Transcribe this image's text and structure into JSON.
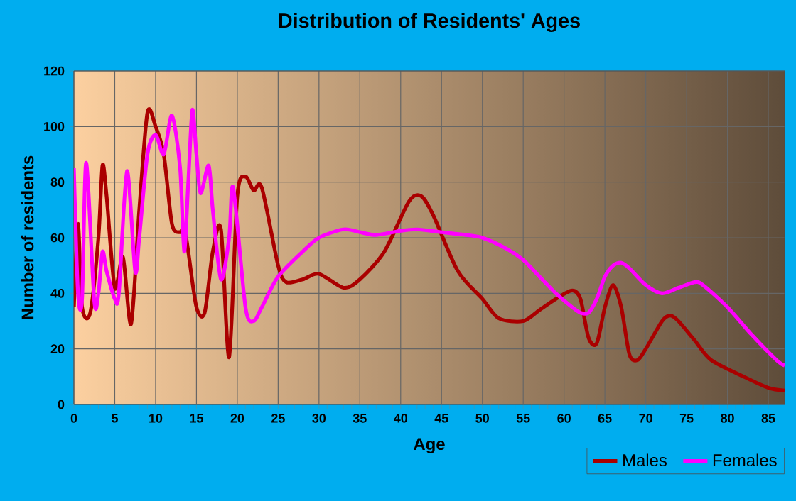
{
  "chart_data": {
    "type": "line",
    "title": "Distribution of Residents' Ages",
    "xlabel": "Age",
    "ylabel": "Number of residents",
    "xlim": [
      0,
      87
    ],
    "ylim": [
      0,
      120
    ],
    "xticks": [
      0,
      5,
      10,
      15,
      20,
      25,
      30,
      35,
      40,
      45,
      50,
      55,
      60,
      65,
      70,
      75,
      80,
      85
    ],
    "yticks": [
      0,
      20,
      40,
      60,
      80,
      100,
      120
    ],
    "grid": true,
    "legend": "bottom right",
    "marker": "none",
    "line_style": "solid",
    "series": [
      {
        "name": "Males",
        "color": "#aa0000",
        "x": [
          0,
          0.5,
          1,
          2,
          3,
          3.5,
          4,
          5,
          6,
          7,
          8,
          9,
          10,
          11,
          12,
          13,
          13.5,
          14,
          15,
          16,
          17,
          18,
          19,
          20,
          21,
          22,
          23,
          25,
          26,
          28,
          30,
          33,
          35,
          38,
          41,
          42.5,
          44,
          47,
          50,
          52,
          55,
          57,
          59,
          61,
          62,
          63,
          64,
          65,
          66,
          67,
          68,
          69,
          70,
          72,
          73,
          74,
          76,
          78,
          82,
          85,
          87
        ],
        "values": [
          35,
          65,
          35,
          33,
          60,
          86,
          75,
          42,
          53,
          29,
          70,
          105,
          100,
          90,
          65,
          62,
          64,
          55,
          35,
          33,
          55,
          63,
          17,
          75,
          82,
          77,
          78,
          50,
          44,
          45,
          47,
          42,
          45,
          55,
          73,
          75,
          68,
          48,
          38,
          31,
          30,
          34,
          38,
          41,
          38,
          24,
          22,
          35,
          43,
          35,
          18,
          16,
          20,
          30,
          32,
          30,
          23,
          16,
          10,
          6,
          5
        ]
      },
      {
        "name": "Females",
        "color": "#ff00ff",
        "x": [
          0,
          0.5,
          1,
          1.5,
          2.5,
          3,
          3.5,
          4,
          5,
          5.5,
          6.5,
          7.5,
          8,
          9,
          10,
          11,
          12,
          13,
          13.5,
          14,
          14.5,
          15,
          15.5,
          16.5,
          17,
          18,
          19,
          19.5,
          21,
          22,
          23,
          25,
          28,
          30,
          33,
          35,
          37,
          40,
          42,
          45,
          48,
          50,
          53,
          55,
          57,
          59,
          61,
          62,
          63,
          64,
          65,
          66,
          67,
          68,
          70,
          72,
          74,
          76,
          77,
          80,
          83,
          86,
          87
        ],
        "values": [
          85,
          40,
          38,
          87,
          37,
          40,
          55,
          48,
          38,
          40,
          84,
          48,
          60,
          90,
          97,
          90,
          104,
          85,
          55,
          80,
          106,
          90,
          76,
          86,
          70,
          45,
          60,
          78,
          35,
          30,
          35,
          46,
          55,
          60,
          63,
          62,
          61,
          62.5,
          63,
          62,
          61,
          60,
          56,
          52,
          46,
          40,
          35,
          33,
          33,
          38,
          46,
          50,
          51,
          49,
          43,
          40,
          42,
          44,
          43,
          35,
          25,
          16,
          14
        ]
      }
    ]
  }
}
